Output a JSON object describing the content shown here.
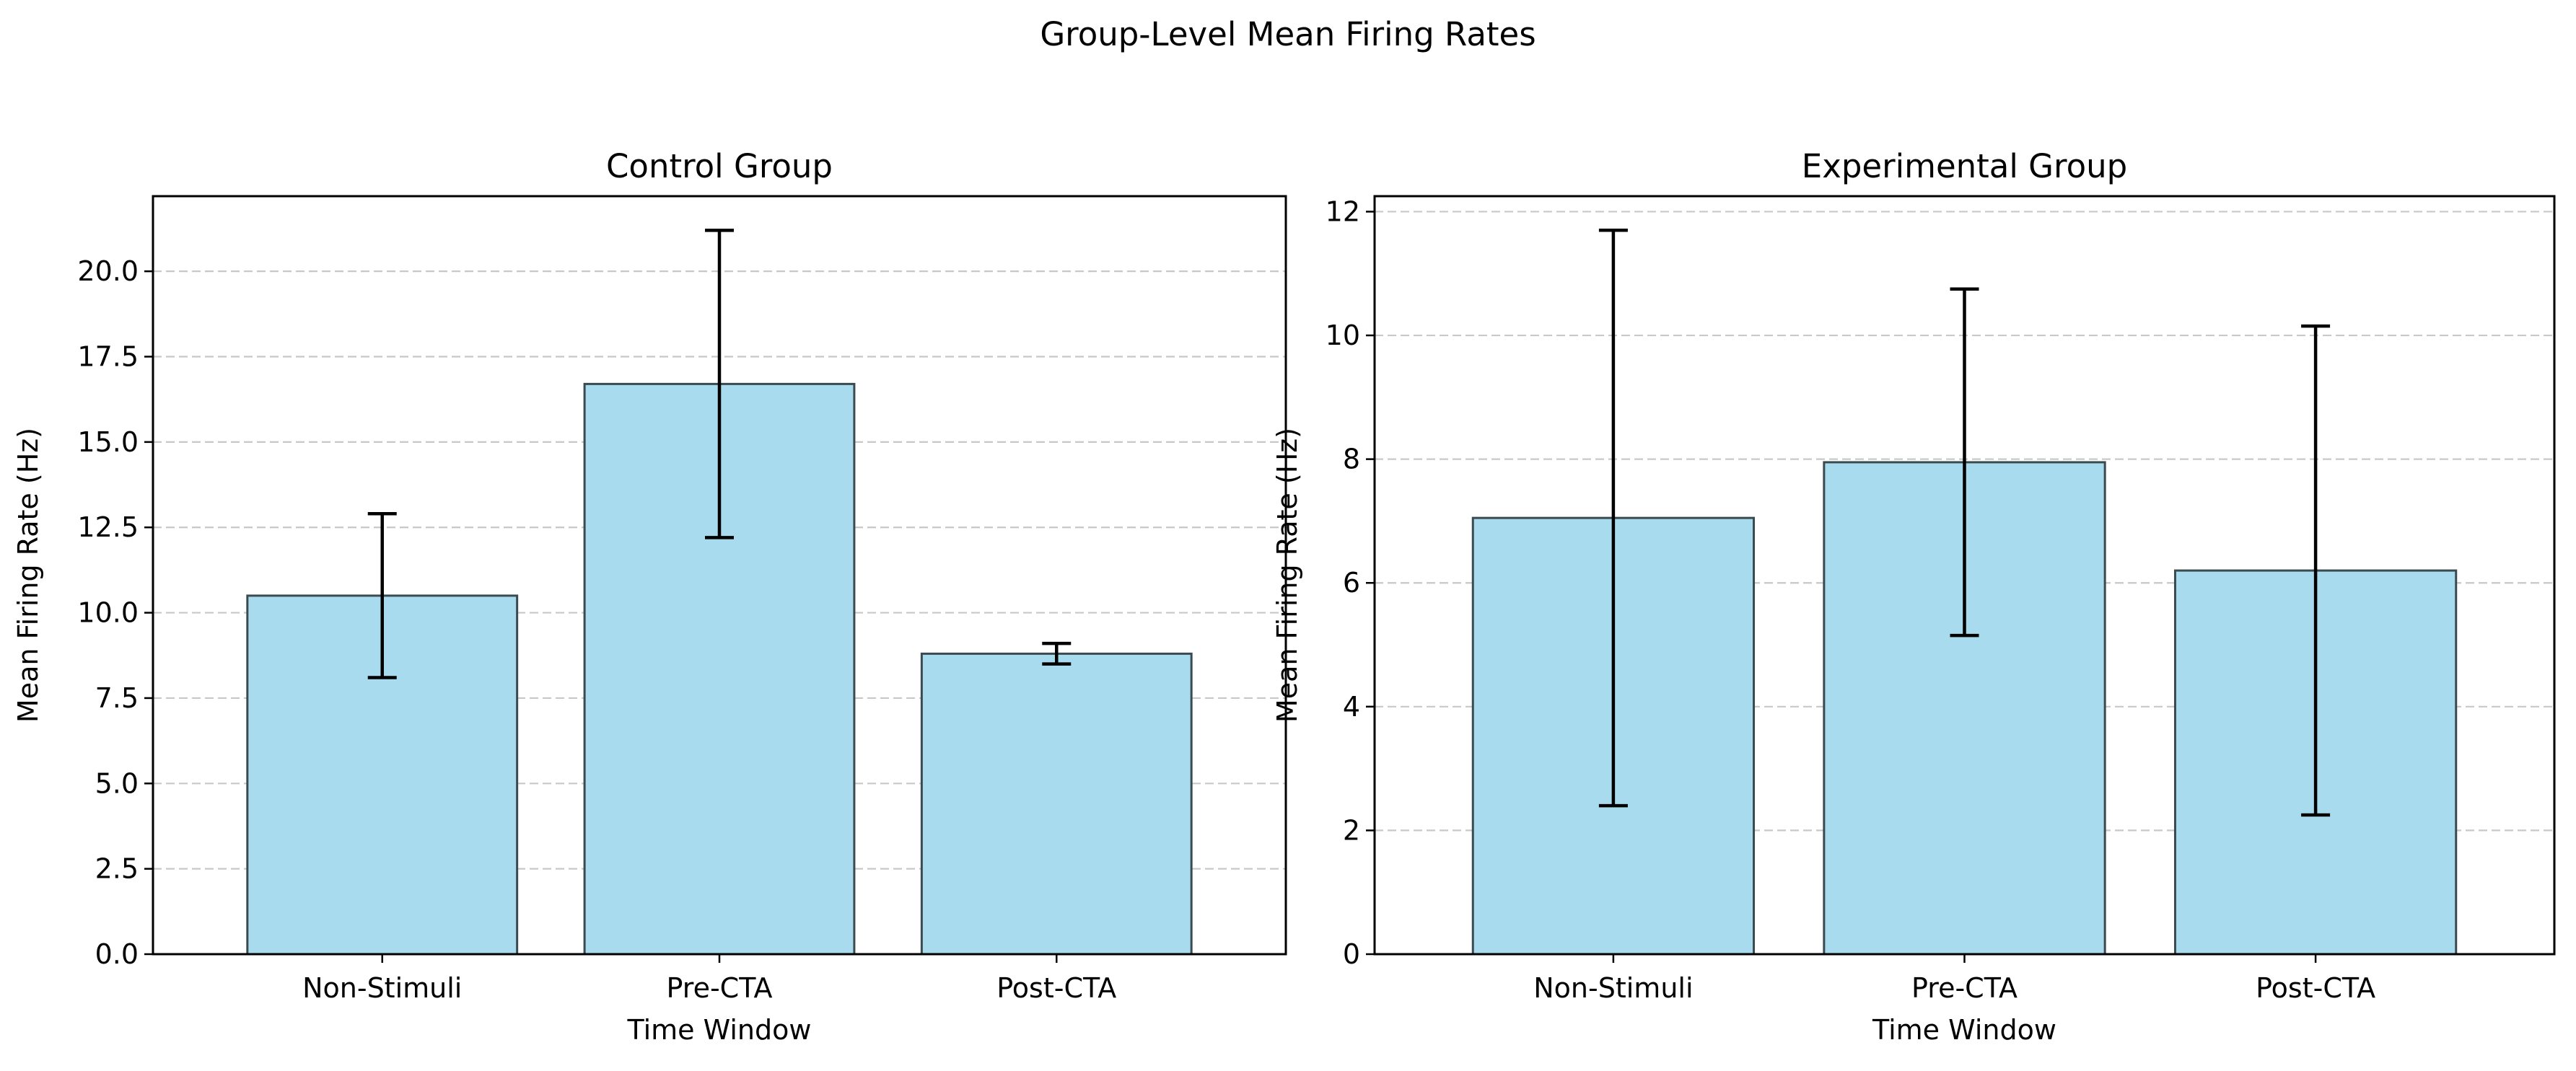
{
  "figure": {
    "title": "Group-Level Mean Firing Rates"
  },
  "colors": {
    "bar_fill": "#a8dbee",
    "bar_edge": "#3a4a4f",
    "error_bar": "#000000",
    "grid": "#c8c8c8"
  },
  "chart_data": [
    {
      "type": "bar",
      "title": "Control Group",
      "xlabel": "Time Window",
      "ylabel": "Mean Firing Rate (Hz)",
      "categories": [
        "Non-Stimuli",
        "Pre-CTA",
        "Post-CTA"
      ],
      "values": [
        10.5,
        16.7,
        8.8
      ],
      "errors": [
        2.4,
        4.5,
        0.3
      ],
      "ylim": [
        0,
        22.2
      ],
      "yticks": [
        0,
        2.5,
        5,
        7.5,
        10,
        12.5,
        15,
        17.5,
        20
      ],
      "ytick_labels": [
        "0.0",
        "2.5",
        "5.0",
        "7.5",
        "10.0",
        "12.5",
        "15.0",
        "17.5",
        "20.0"
      ],
      "grid": "y-dashed"
    },
    {
      "type": "bar",
      "title": "Experimental Group",
      "xlabel": "Time Window",
      "ylabel": "Mean Firing Rate (Hz)",
      "categories": [
        "Non-Stimuli",
        "Pre-CTA",
        "Post-CTA"
      ],
      "values": [
        7.05,
        7.95,
        6.2
      ],
      "errors": [
        4.65,
        2.8,
        3.95
      ],
      "ylim": [
        0,
        12.25
      ],
      "yticks": [
        0,
        2,
        4,
        6,
        8,
        10,
        12
      ],
      "ytick_labels": [
        "0",
        "2",
        "4",
        "6",
        "8",
        "10",
        "12"
      ],
      "grid": "y-dashed"
    }
  ]
}
